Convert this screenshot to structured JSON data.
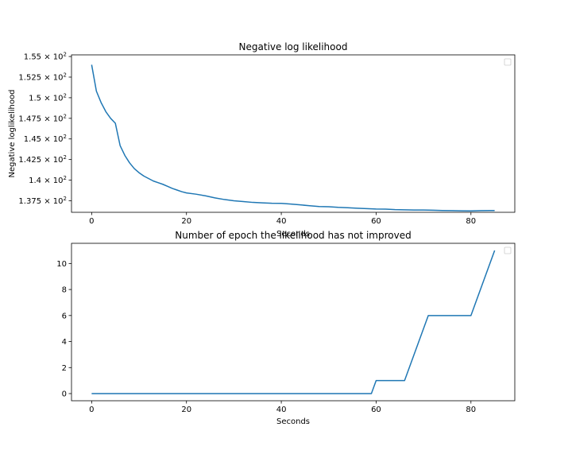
{
  "chart_data": [
    {
      "type": "line",
      "title": "Negative log likelihood",
      "xlabel": "Seconds",
      "ylabel": "Negative loglikelihood",
      "xlim": [
        -4.25,
        89.25
      ],
      "ylim": [
        136.1,
        155.2
      ],
      "grid": false,
      "legend": "upper right",
      "legend_entries": [],
      "x_ticks": [
        {
          "value": 0,
          "label": "0"
        },
        {
          "value": 20,
          "label": "20"
        },
        {
          "value": 40,
          "label": "40"
        },
        {
          "value": 60,
          "label": "60"
        },
        {
          "value": 80,
          "label": "80"
        }
      ],
      "y_ticks": [
        {
          "value": 137.5,
          "mantissa": "1.375",
          "base": "× 10",
          "exp": "2"
        },
        {
          "value": 140.0,
          "mantissa": "1.4",
          "base": "× 10",
          "exp": "2"
        },
        {
          "value": 142.5,
          "mantissa": "1.425",
          "base": "× 10",
          "exp": "2"
        },
        {
          "value": 145.0,
          "mantissa": "1.45",
          "base": "× 10",
          "exp": "2"
        },
        {
          "value": 147.5,
          "mantissa": "1.475",
          "base": "× 10",
          "exp": "2"
        },
        {
          "value": 150.0,
          "mantissa": "1.5",
          "base": "× 10",
          "exp": "2"
        },
        {
          "value": 152.5,
          "mantissa": "1.525",
          "base": "× 10",
          "exp": "2"
        },
        {
          "value": 155.0,
          "mantissa": "1.55",
          "base": "× 10",
          "exp": "2"
        }
      ],
      "series": [
        {
          "color": "#1f77b4",
          "x": [
            0,
            1,
            2,
            3,
            4,
            5,
            6,
            7,
            8,
            9,
            10,
            11,
            12,
            13,
            14,
            15,
            16,
            17,
            18,
            19,
            20,
            22,
            24,
            26,
            28,
            30,
            32,
            34,
            36,
            38,
            40,
            42,
            44,
            46,
            48,
            50,
            52,
            54,
            56,
            58,
            60,
            62,
            64,
            66,
            68,
            70,
            72,
            74,
            76,
            78,
            80,
            82,
            84,
            85
          ],
          "y": [
            154.0,
            150.8,
            149.4,
            148.3,
            147.5,
            146.9,
            144.2,
            143.0,
            142.1,
            141.4,
            140.9,
            140.5,
            140.2,
            139.9,
            139.7,
            139.5,
            139.25,
            139.0,
            138.8,
            138.6,
            138.45,
            138.3,
            138.1,
            137.85,
            137.65,
            137.5,
            137.4,
            137.3,
            137.25,
            137.2,
            137.18,
            137.1,
            137.0,
            136.9,
            136.8,
            136.78,
            136.7,
            136.65,
            136.6,
            136.55,
            136.5,
            136.48,
            136.42,
            136.4,
            136.38,
            136.38,
            136.35,
            136.32,
            136.3,
            136.28,
            136.27,
            136.3,
            136.32,
            136.32
          ]
        }
      ]
    },
    {
      "type": "line",
      "title": "Number of epoch the likelihood has not improved",
      "xlabel": "Seconds",
      "ylabel": "",
      "xlim": [
        -4.25,
        89.25
      ],
      "ylim": [
        -0.55,
        11.55
      ],
      "grid": false,
      "legend": "upper right",
      "legend_entries": [],
      "x_ticks": [
        {
          "value": 0,
          "label": "0"
        },
        {
          "value": 20,
          "label": "20"
        },
        {
          "value": 40,
          "label": "40"
        },
        {
          "value": 60,
          "label": "60"
        },
        {
          "value": 80,
          "label": "80"
        }
      ],
      "y_ticks": [
        {
          "value": 0,
          "label": "0"
        },
        {
          "value": 2,
          "label": "2"
        },
        {
          "value": 4,
          "label": "4"
        },
        {
          "value": 6,
          "label": "6"
        },
        {
          "value": 8,
          "label": "8"
        },
        {
          "value": 10,
          "label": "10"
        }
      ],
      "series": [
        {
          "color": "#1f77b4",
          "x": [
            0,
            59,
            60,
            66,
            71,
            80,
            85
          ],
          "y": [
            0,
            0,
            1,
            1,
            6,
            6,
            11
          ]
        }
      ]
    }
  ]
}
